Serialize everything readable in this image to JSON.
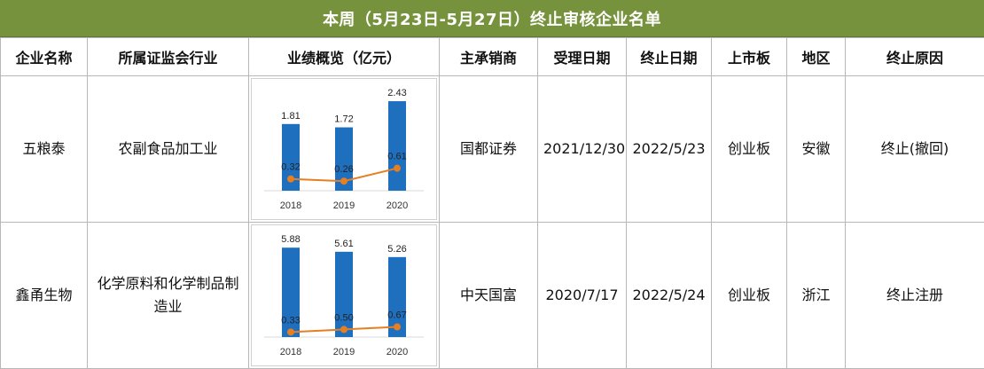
{
  "title": "本周（5月23日-5月27日）终止审核企业名单",
  "columns": [
    "企业名称",
    "所属证监会行业",
    "业绩概览（亿元）",
    "主承销商",
    "受理日期",
    "终止日期",
    "上市板",
    "地区",
    "终止原因"
  ],
  "rows": [
    {
      "company": "五粮泰",
      "industry": "农副食品加工业",
      "underwriter": "国都证券",
      "accept_date": "2021/12/30",
      "terminate_date": "2022/5/23",
      "board": "创业板",
      "region": "安徽",
      "reason": "终止(撤回)"
    },
    {
      "company": "鑫甬生物",
      "industry": "化学原料和化学制品制造业",
      "underwriter": "中天国富",
      "accept_date": "2020/7/17",
      "terminate_date": "2022/5/24",
      "board": "创业板",
      "region": "浙江",
      "reason": "终止注册"
    }
  ],
  "colors": {
    "header_bg": "#76923c",
    "bar": "#1f6fbf",
    "line": "#e67e22"
  },
  "chart_data": [
    {
      "type": "bar",
      "categories": [
        "2018",
        "2019",
        "2020"
      ],
      "series": [
        {
          "values": [
            1.81,
            1.72,
            2.43
          ],
          "render": "bar"
        },
        {
          "values": [
            0.32,
            0.26,
            0.61
          ],
          "render": "line"
        }
      ],
      "ylim": [
        0,
        2.6
      ],
      "grid": false
    },
    {
      "type": "bar",
      "categories": [
        "2018",
        "2019",
        "2020"
      ],
      "series": [
        {
          "values": [
            5.88,
            5.61,
            5.26
          ],
          "render": "bar"
        },
        {
          "values": [
            0.33,
            0.5,
            0.67
          ],
          "render": "line"
        }
      ],
      "ylim": [
        0,
        6.3
      ],
      "grid": false
    }
  ]
}
